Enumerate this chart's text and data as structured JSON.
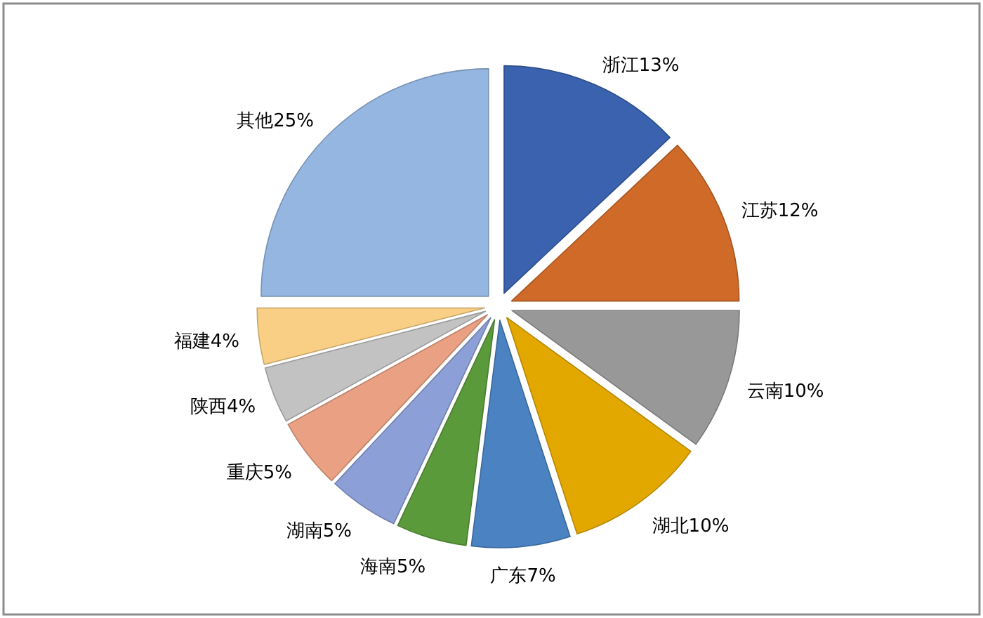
{
  "chart_data": {
    "type": "pie",
    "categories": [
      "浙江",
      "江苏",
      "云南",
      "湖北",
      "广东",
      "海南",
      "湖南",
      "重庆",
      "陕西",
      "福建",
      "其他"
    ],
    "values": [
      13,
      12,
      10,
      10,
      7,
      5,
      5,
      5,
      4,
      4,
      25
    ],
    "value_labels": [
      "13%",
      "12%",
      "10%",
      "10%",
      "7%",
      "5%",
      "5%",
      "5%",
      "4%",
      "4%",
      "25%"
    ],
    "colors": [
      "#3a62ae",
      "#d06a28",
      "#989898",
      "#e2a800",
      "#4a82c2",
      "#5a9a3a",
      "#8c9fd6",
      "#eaa082",
      "#c2c2c2",
      "#f8cf84",
      "#95b6e0"
    ]
  }
}
